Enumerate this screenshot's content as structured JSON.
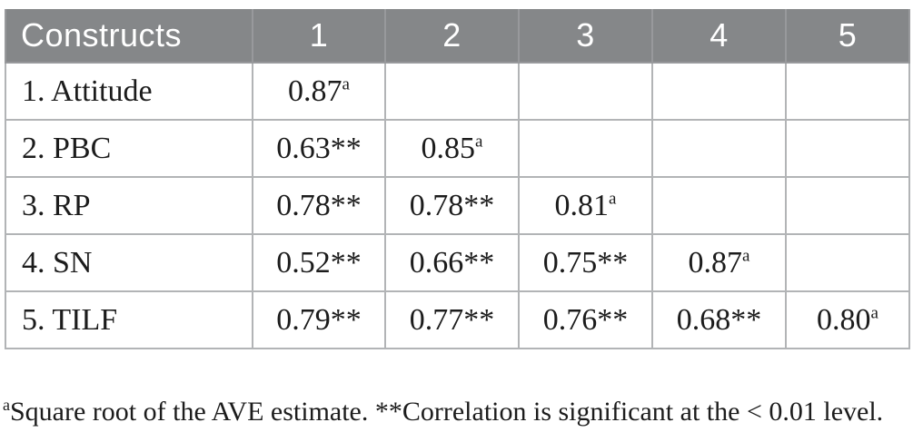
{
  "colors": {
    "header_background": "#858789",
    "header_text": "#ffffff",
    "body_text": "#1c1c1c",
    "cell_border": "#b2b4b6",
    "header_divider": "#98999c",
    "page_background": "#ffffff"
  },
  "table": {
    "columns": [
      "Constructs",
      "1",
      "2",
      "3",
      "4",
      "5"
    ],
    "rows": [
      {
        "label": "1. Attitude",
        "cells": [
          {
            "base": "0.87",
            "sup": "a"
          },
          {},
          {},
          {},
          {}
        ]
      },
      {
        "label": "2. PBC",
        "cells": [
          {
            "base": "0.63**"
          },
          {
            "base": "0.85",
            "sup": "a"
          },
          {},
          {},
          {}
        ]
      },
      {
        "label": "3. RP",
        "cells": [
          {
            "base": "0.78**"
          },
          {
            "base": "0.78**"
          },
          {
            "base": "0.81",
            "sup": "a"
          },
          {},
          {}
        ]
      },
      {
        "label": "4. SN",
        "cells": [
          {
            "base": "0.52**"
          },
          {
            "base": "0.66**"
          },
          {
            "base": "0.75**"
          },
          {
            "base": "0.87",
            "sup": "a"
          },
          {}
        ]
      },
      {
        "label": "5. TILF",
        "cells": [
          {
            "base": "0.79**"
          },
          {
            "base": "0.77**"
          },
          {
            "base": "0.76**"
          },
          {
            "base": "0.68**"
          },
          {
            "base": "0.80",
            "sup": "a"
          }
        ]
      }
    ]
  },
  "footnote": {
    "sup": "a",
    "text": "Square root of the AVE estimate. **Correlation is significant at the < 0.01 level."
  }
}
